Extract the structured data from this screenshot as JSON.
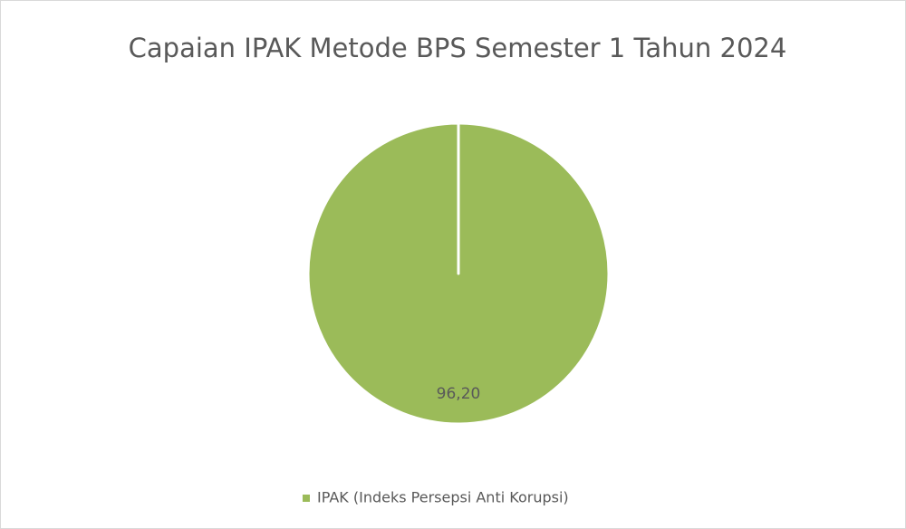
{
  "chart_data": {
    "type": "pie",
    "title": "Capaian IPAK Metode BPS Semester 1 Tahun 2024",
    "categories": [
      "IPAK (Indeks Persepsi Anti Korupsi)"
    ],
    "values": [
      96.2
    ],
    "value_labels": [
      "96,20"
    ],
    "colors": [
      "#9bbb59"
    ],
    "legend": "bottom"
  }
}
